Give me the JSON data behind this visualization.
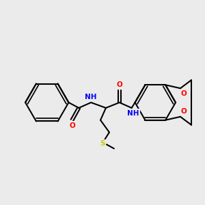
{
  "bg_color": "#EBEBEB",
  "bond_color": "#000000",
  "atom_colors": {
    "O": "#FF0000",
    "N": "#0000FF",
    "S": "#CCCC00",
    "C": "#000000"
  },
  "lw": 1.5,
  "fs": 7.5
}
